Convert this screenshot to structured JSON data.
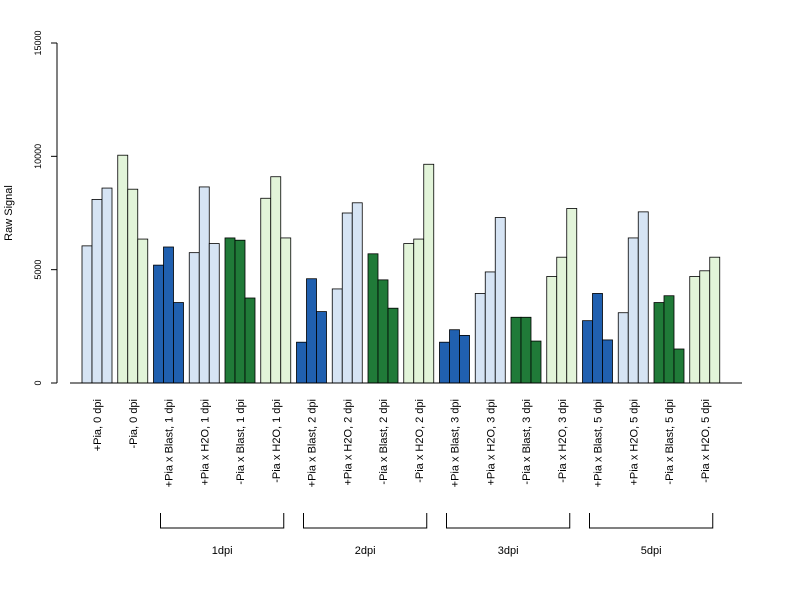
{
  "chart_data": {
    "type": "bar",
    "title": "",
    "xlabel": "",
    "ylabel": "Raw Signal",
    "ylim": [
      0,
      15000
    ],
    "yticks": [
      0,
      5000,
      10000,
      15000
    ],
    "ytick_labels": [
      "0",
      "5000",
      "10000",
      "15000"
    ],
    "grid": false,
    "colors": {
      "light_blue": "#d6e4f4",
      "light_green": "#e2f4d9",
      "dark_blue": "#2060b0",
      "dark_green": "#207a38",
      "outline": "#000000"
    },
    "categories": [
      {
        "label": "+Pia, 0 dpi",
        "color": "light_blue",
        "values": [
          6050,
          8100,
          8600
        ]
      },
      {
        "label": "-Pia, 0 dpi",
        "color": "light_green",
        "values": [
          10050,
          8550,
          6350
        ]
      },
      {
        "label": "+Pia x Blast, 1 dpi",
        "color": "dark_blue",
        "values": [
          5200,
          6000,
          3550
        ]
      },
      {
        "label": "+Pia x H2O, 1 dpi",
        "color": "light_blue",
        "values": [
          5750,
          8650,
          6150
        ]
      },
      {
        "label": "-Pia x Blast, 1 dpi",
        "color": "dark_green",
        "values": [
          6400,
          6300,
          3750
        ]
      },
      {
        "label": "-Pia x H2O, 1 dpi",
        "color": "light_green",
        "values": [
          8150,
          9100,
          6400
        ]
      },
      {
        "label": "+Pia x Blast, 2 dpi",
        "color": "dark_blue",
        "values": [
          1800,
          4600,
          3150
        ]
      },
      {
        "label": "+Pia x H2O, 2 dpi",
        "color": "light_blue",
        "values": [
          4150,
          7500,
          7950
        ]
      },
      {
        "label": "-Pia x Blast, 2 dpi",
        "color": "dark_green",
        "values": [
          5700,
          4550,
          3300
        ]
      },
      {
        "label": "-Pia x H2O, 2 dpi",
        "color": "light_green",
        "values": [
          6150,
          6350,
          9650
        ]
      },
      {
        "label": "+Pia x Blast, 3 dpi",
        "color": "dark_blue",
        "values": [
          1800,
          2350,
          2100
        ]
      },
      {
        "label": "+Pia x H2O, 3 dpi",
        "color": "light_blue",
        "values": [
          3950,
          4900,
          7300
        ]
      },
      {
        "label": "-Pia x Blast, 3 dpi",
        "color": "dark_green",
        "values": [
          2900,
          2900,
          1850
        ]
      },
      {
        "label": "-Pia x H2O, 3 dpi",
        "color": "light_green",
        "values": [
          4700,
          5550,
          7700
        ]
      },
      {
        "label": "+Pia x Blast, 5 dpi",
        "color": "dark_blue",
        "values": [
          2750,
          3950,
          1900
        ]
      },
      {
        "label": "+Pia x H2O, 5 dpi",
        "color": "light_blue",
        "values": [
          3100,
          6400,
          7550
        ]
      },
      {
        "label": "-Pia x Blast, 5 dpi",
        "color": "dark_green",
        "values": [
          3550,
          3850,
          1500
        ]
      },
      {
        "label": "-Pia x H2O, 5 dpi",
        "color": "light_green",
        "values": [
          4700,
          4950,
          5550
        ]
      }
    ],
    "groups": [
      {
        "label": "1dpi",
        "first": 2,
        "last": 5
      },
      {
        "label": "2dpi",
        "first": 6,
        "last": 9
      },
      {
        "label": "3dpi",
        "first": 10,
        "last": 13
      },
      {
        "label": "5dpi",
        "first": 14,
        "last": 17
      }
    ]
  }
}
